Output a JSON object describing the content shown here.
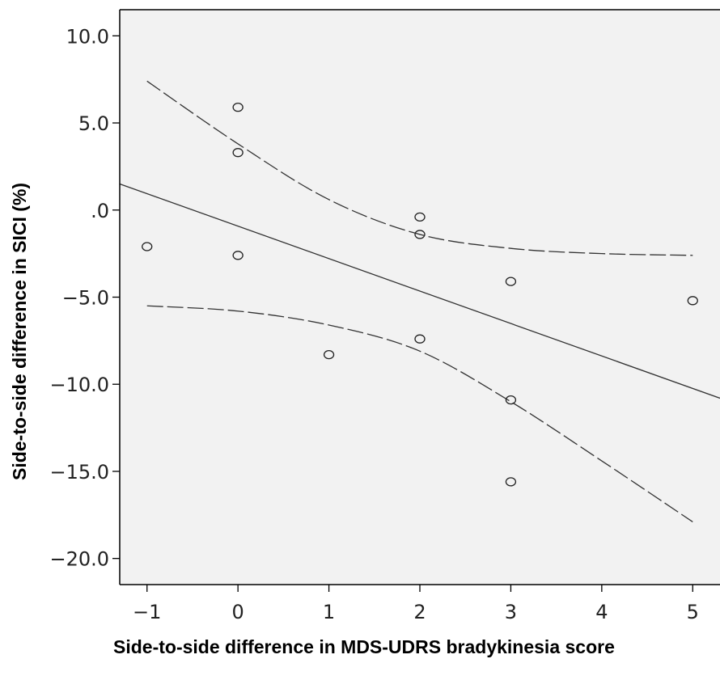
{
  "chart_data": {
    "type": "scatter",
    "title": "",
    "xlabel": "Side-to-side difference in MDS-UDRS bradykinesia score",
    "ylabel": "Side-to-side difference in SICI (%)",
    "xlim": [
      -1.3,
      5.3
    ],
    "ylim": [
      -21.5,
      11.5
    ],
    "x_ticks": [
      -1,
      0,
      1,
      2,
      3,
      4,
      5
    ],
    "x_tick_labels": [
      "−1",
      "0",
      "1",
      "2",
      "3",
      "4",
      "5"
    ],
    "y_ticks": [
      10,
      5,
      0,
      -5,
      -10,
      -15,
      -20
    ],
    "y_tick_labels": [
      "10.0",
      "5.0",
      ".0",
      "−5.0",
      "−10.0",
      "−15.0",
      "−20.0"
    ],
    "grid": false,
    "points": [
      {
        "x": -1,
        "y": -2.1
      },
      {
        "x": 0,
        "y": 5.9
      },
      {
        "x": 0,
        "y": 3.3
      },
      {
        "x": 0,
        "y": -2.6
      },
      {
        "x": 1,
        "y": -8.3
      },
      {
        "x": 2,
        "y": -0.4
      },
      {
        "x": 2,
        "y": -1.4
      },
      {
        "x": 2,
        "y": -7.4
      },
      {
        "x": 3,
        "y": -4.1
      },
      {
        "x": 3,
        "y": -10.9
      },
      {
        "x": 3,
        "y": -15.6
      },
      {
        "x": 5,
        "y": -5.2
      }
    ],
    "fit_line": {
      "x": [
        -1.3,
        5.3
      ],
      "y": [
        1.5,
        -10.8
      ]
    },
    "ci_upper": {
      "x": [
        -1,
        0,
        1,
        2,
        3,
        4,
        5
      ],
      "y": [
        7.4,
        3.8,
        0.6,
        -1.4,
        -2.2,
        -2.5,
        -2.6
      ]
    },
    "ci_lower": {
      "x": [
        -1,
        0,
        1,
        2,
        3,
        4,
        5
      ],
      "y": [
        -5.5,
        -5.8,
        -6.6,
        -8.1,
        -11.0,
        -14.4,
        -17.9
      ]
    },
    "colors": {
      "background": "#f2f2f2",
      "point_stroke": "#222222",
      "line": "#333333"
    }
  }
}
